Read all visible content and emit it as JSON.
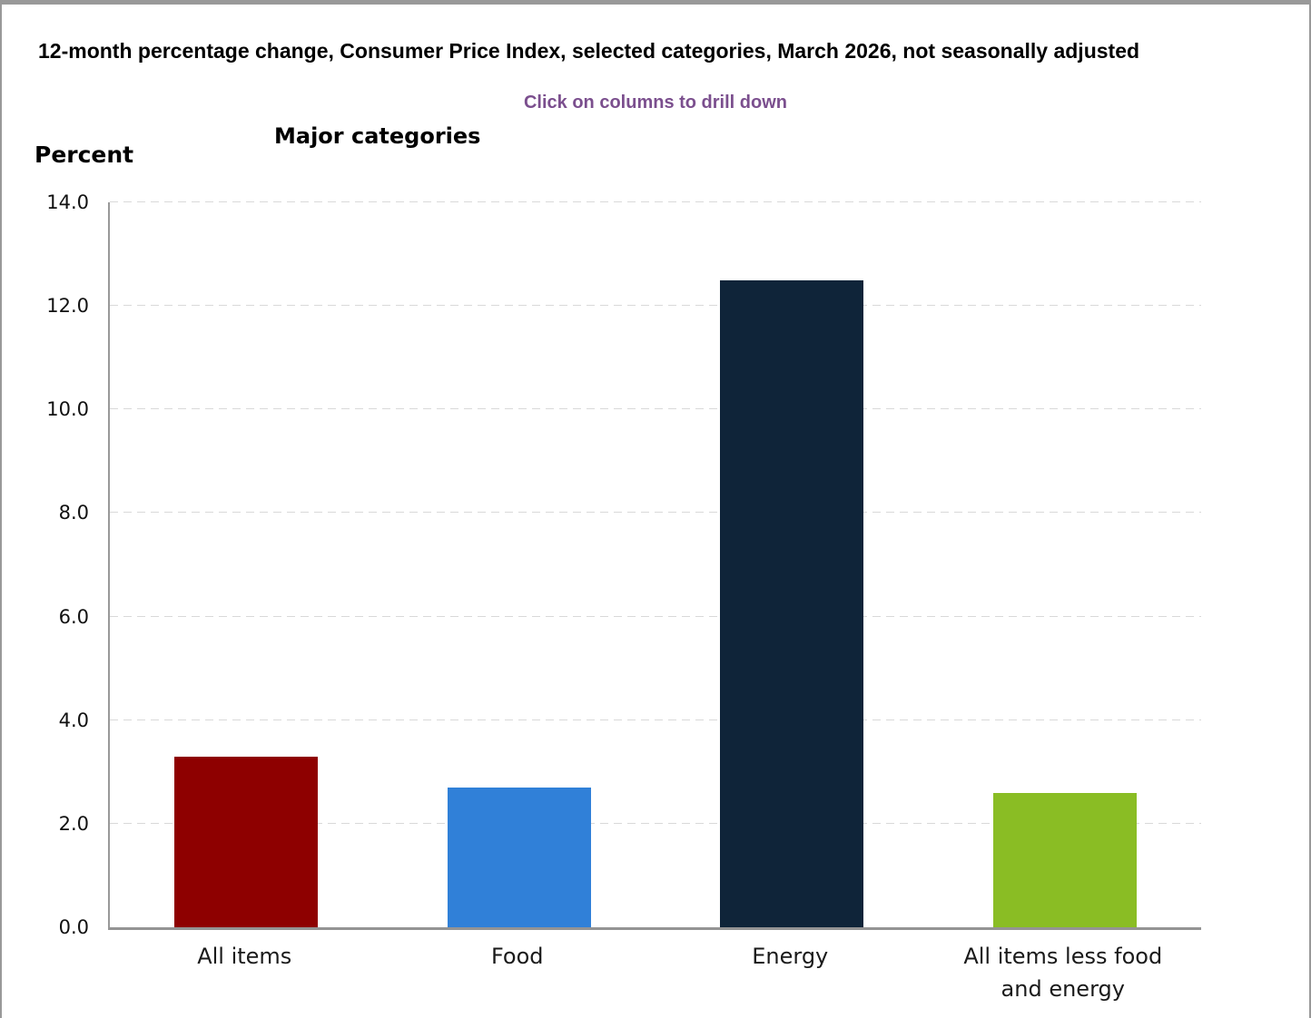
{
  "page": {
    "title": "12-month percentage change, Consumer Price Index, selected categories, March 2026, not seasonally adjusted",
    "drilldown_hint": "Click on columns to drill down",
    "hint_color": "#7b4f8e"
  },
  "chart_data": {
    "type": "bar",
    "title": "Major categories",
    "ylabel": "Percent",
    "categories": [
      "All items",
      "Food",
      "Energy",
      "All items less food and energy"
    ],
    "values": [
      3.3,
      2.7,
      12.5,
      2.6
    ],
    "bar_colors": [
      "#8e0000",
      "#3080d8",
      "#0f2439",
      "#8abd24"
    ],
    "ylim": [
      0,
      14
    ],
    "yticks": [
      "0.0",
      "2.0",
      "4.0",
      "6.0",
      "8.0",
      "10.0",
      "12.0",
      "14.0"
    ],
    "grid": "horizontal-dashed",
    "axis_color": "#999999",
    "gridline_color": "#d9d9d9",
    "legend": "none"
  }
}
